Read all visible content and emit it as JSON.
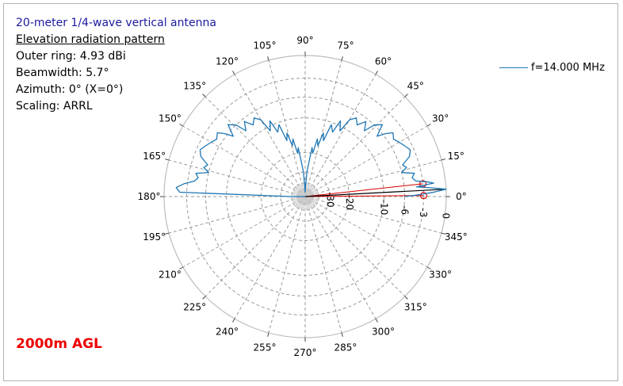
{
  "header": {
    "title": "20-meter 1/4-wave vertical antenna",
    "subtitle": "Elevation radiation pattern",
    "outer_ring": "Outer ring: 4.93 dBi",
    "beamwidth": "Beamwidth: 5.7°",
    "azimuth": "Azimuth: 0° (X=0°)",
    "scaling": "Scaling: ARRL"
  },
  "annotation": "2000m AGL",
  "colors": {
    "series": "#1f77b4",
    "beam": "#dd0000",
    "main_lobe": "#000000",
    "grid": "#9a9a9a"
  },
  "chart_data": {
    "type": "polar-line",
    "angular_ticks": [
      "0°",
      "15°",
      "30°",
      "45°",
      "60°",
      "75°",
      "90°",
      "105°",
      "120°",
      "135°",
      "150°",
      "165°",
      "180°",
      "195°",
      "210°",
      "225°",
      "240°",
      "255°",
      "270°",
      "285°",
      "300°",
      "315°",
      "330°",
      "345°"
    ],
    "radial_ticks": [
      "0",
      "-3",
      "-6",
      "-10",
      "-20",
      "-30"
    ],
    "radial_tick_values_db": [
      0,
      -3,
      -6,
      -10,
      -20,
      -30
    ],
    "extra_dashed_rings_db": [
      -40,
      -50
    ],
    "scale_max_db": 0,
    "legend": [
      "f=14.000 MHz"
    ],
    "series": [
      {
        "name": "f=14.000 MHz",
        "points_deg_db": [
          [
            0,
            -6
          ],
          [
            1,
            -3.5
          ],
          [
            2,
            -1.5
          ],
          [
            3,
            0
          ],
          [
            4,
            -2
          ],
          [
            5,
            -4
          ],
          [
            6,
            -1.5
          ],
          [
            7,
            -2.5
          ],
          [
            8,
            -4
          ],
          [
            10,
            -4.5
          ],
          [
            12,
            -4
          ],
          [
            14,
            -6
          ],
          [
            16,
            -5
          ],
          [
            18,
            -5.5
          ],
          [
            21,
            -4
          ],
          [
            24,
            -3.5
          ],
          [
            27,
            -4
          ],
          [
            30,
            -4.5
          ],
          [
            33,
            -5
          ],
          [
            36,
            -4.5
          ],
          [
            38,
            -5.5
          ],
          [
            40,
            -7
          ],
          [
            43,
            -5
          ],
          [
            46,
            -6
          ],
          [
            48,
            -8
          ],
          [
            51,
            -6.5
          ],
          [
            54,
            -8
          ],
          [
            57,
            -7
          ],
          [
            60,
            -8
          ],
          [
            62,
            -11
          ],
          [
            65,
            -9
          ],
          [
            67,
            -12
          ],
          [
            70,
            -10.5
          ],
          [
            72,
            -15
          ],
          [
            74,
            -13
          ],
          [
            76,
            -17
          ],
          [
            78,
            -15
          ],
          [
            80,
            -20
          ],
          [
            82,
            -18
          ],
          [
            84,
            -25
          ],
          [
            86,
            -30
          ],
          [
            88,
            -45
          ],
          [
            90,
            -60
          ],
          [
            92,
            -45
          ],
          [
            94,
            -30
          ],
          [
            96,
            -25
          ],
          [
            98,
            -18
          ],
          [
            100,
            -20
          ],
          [
            102,
            -15
          ],
          [
            104,
            -17
          ],
          [
            106,
            -13
          ],
          [
            108,
            -15
          ],
          [
            110,
            -10.5
          ],
          [
            113,
            -12
          ],
          [
            115,
            -9
          ],
          [
            118,
            -11
          ],
          [
            120,
            -8
          ],
          [
            123,
            -7
          ],
          [
            126,
            -8
          ],
          [
            129,
            -6.5
          ],
          [
            132,
            -8
          ],
          [
            134,
            -6
          ],
          [
            137,
            -5
          ],
          [
            140,
            -7
          ],
          [
            142,
            -5.5
          ],
          [
            144,
            -4.5
          ],
          [
            147,
            -5
          ],
          [
            150,
            -4.5
          ],
          [
            153,
            -4
          ],
          [
            156,
            -3.5
          ],
          [
            159,
            -4
          ],
          [
            162,
            -5.5
          ],
          [
            164,
            -5
          ],
          [
            166,
            -6
          ],
          [
            168,
            -4
          ],
          [
            170,
            -4.5
          ],
          [
            172,
            -4
          ],
          [
            174,
            -2.5
          ],
          [
            176,
            -1.5
          ],
          [
            178,
            -2
          ],
          [
            180,
            -40
          ]
        ]
      }
    ],
    "main_lobe_deg": 3,
    "beamwidth_deg": 5.7,
    "beam_edges_deg": [
      0.5,
      6.2
    ],
    "beam_edge_level_db": -3
  }
}
